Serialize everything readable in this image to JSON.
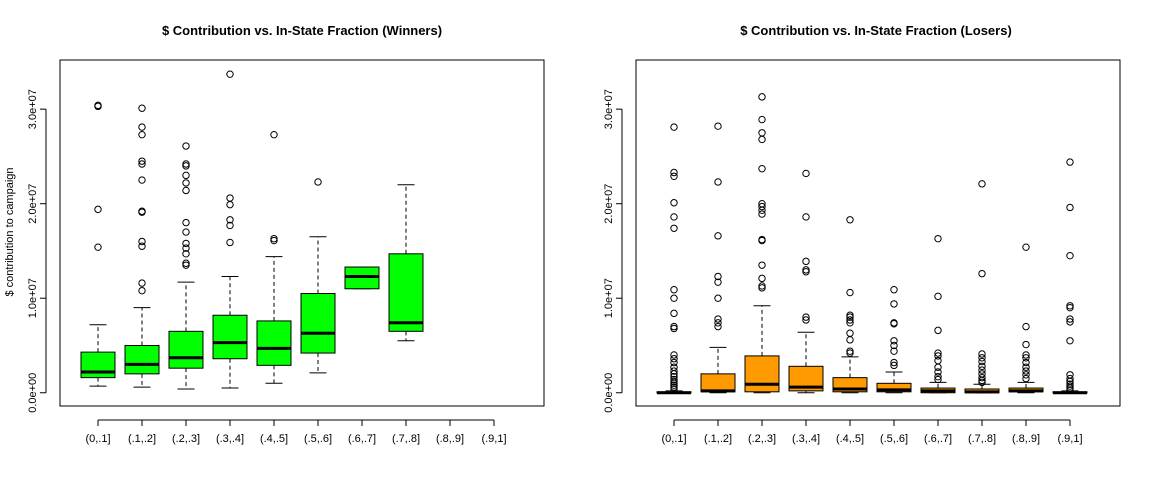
{
  "ylabel": "$ contribution to campaign",
  "colors": {
    "winners": "#00ff00",
    "losers": "#ff9a00",
    "stroke": "#000000"
  },
  "chart_data": [
    {
      "type": "box",
      "title": "$ Contribution vs. In-State Fraction (Winners)",
      "xlabel": "",
      "ylabel": "$ contribution to campaign",
      "ylim": [
        -1400000,
        35200000
      ],
      "yticks": [
        0,
        10000000,
        20000000,
        30000000
      ],
      "ytick_labels": [
        "0.0e+00",
        "1.0e+07",
        "2.0e+07",
        "3.0e+07"
      ],
      "categories": [
        "(0,.1]",
        "(.1,.2]",
        "(.2,.3]",
        "(.3,.4]",
        "(.4,.5]",
        "(.5,.6]",
        "(.6,.7]",
        "(.7,.8]",
        "(.8,.9]",
        "(.9,1]"
      ],
      "boxes": [
        {
          "whisker_low": 700000,
          "q1": 1600000,
          "median": 2200000,
          "q3": 4300000,
          "whisker_high": 7200000,
          "outliers": [
            15400000,
            19400000,
            30300000,
            30400000
          ]
        },
        {
          "whisker_low": 600000,
          "q1": 2000000,
          "median": 3000000,
          "q3": 5000000,
          "whisker_high": 9000000,
          "outliers": [
            10800000,
            11600000,
            15500000,
            16000000,
            19100000,
            19200000,
            22500000,
            24200000,
            24500000,
            27300000,
            28100000,
            30100000
          ]
        },
        {
          "whisker_low": 400000,
          "q1": 2600000,
          "median": 3700000,
          "q3": 6500000,
          "whisker_high": 11700000,
          "outliers": [
            13500000,
            13700000,
            14700000,
            15300000,
            15800000,
            17000000,
            18000000,
            21400000,
            22200000,
            23000000,
            24000000,
            24200000,
            26100000
          ]
        },
        {
          "whisker_low": 500000,
          "q1": 3600000,
          "median": 5300000,
          "q3": 8200000,
          "whisker_high": 12300000,
          "outliers": [
            15900000,
            17700000,
            18300000,
            19900000,
            20600000,
            33700000
          ]
        },
        {
          "whisker_low": 1000000,
          "q1": 2900000,
          "median": 4700000,
          "q3": 7600000,
          "whisker_high": 14400000,
          "outliers": [
            16100000,
            16300000,
            27300000
          ]
        },
        {
          "whisker_low": 2100000,
          "q1": 4200000,
          "median": 6300000,
          "q3": 10500000,
          "whisker_high": 16500000,
          "outliers": [
            22300000
          ]
        },
        {
          "whisker_low": 11000000,
          "q1": 11000000,
          "median": 12300000,
          "q3": 13300000,
          "whisker_high": 13300000,
          "outliers": []
        },
        {
          "whisker_low": 5500000,
          "q1": 6500000,
          "median": 7400000,
          "q3": 14700000,
          "whisker_high": 22000000,
          "outliers": []
        },
        null,
        null
      ]
    },
    {
      "type": "box",
      "title": "$ Contribution vs. In-State Fraction (Losers)",
      "xlabel": "",
      "ylabel": "",
      "ylim": [
        -1400000,
        35200000
      ],
      "yticks": [
        0,
        10000000,
        20000000,
        30000000
      ],
      "ytick_labels": [
        "0.0e+00",
        "1.0e+07",
        "2.0e+07",
        "3.0e+07"
      ],
      "categories": [
        "(0,.1]",
        "(.1,.2]",
        "(.2,.3]",
        "(.3,.4]",
        "(.4,.5]",
        "(.5,.6]",
        "(.6,.7]",
        "(.7,.8]",
        "(.8,.9]",
        "(.9,1]"
      ],
      "boxes": [
        {
          "whisker_low": 0,
          "q1": 0,
          "median": 0,
          "q3": 100000,
          "whisker_high": 200000,
          "outliers": [
            400000,
            600000,
            800000,
            1000000,
            1200000,
            1400000,
            1700000,
            2000000,
            2300000,
            2700000,
            3200000,
            3600000,
            4000000,
            6800000,
            7000000,
            8400000,
            10000000,
            10900000,
            17400000,
            18600000,
            20100000,
            22900000,
            23300000,
            28100000
          ]
        },
        {
          "whisker_low": 0,
          "q1": 100000,
          "median": 200000,
          "q3": 2000000,
          "whisker_high": 4800000,
          "outliers": [
            7000000,
            7400000,
            7800000,
            10000000,
            11700000,
            12300000,
            16600000,
            22300000,
            28200000
          ]
        },
        {
          "whisker_low": 0,
          "q1": 100000,
          "median": 900000,
          "q3": 3900000,
          "whisker_high": 9200000,
          "outliers": [
            11100000,
            11300000,
            12100000,
            13500000,
            16100000,
            16200000,
            18900000,
            19300000,
            19700000,
            20000000,
            23700000,
            26800000,
            27500000,
            28900000,
            31300000
          ]
        },
        {
          "whisker_low": 0,
          "q1": 200000,
          "median": 600000,
          "q3": 2800000,
          "whisker_high": 6400000,
          "outliers": [
            7700000,
            8000000,
            12800000,
            13000000,
            13900000,
            18600000,
            23200000
          ]
        },
        {
          "whisker_low": 0,
          "q1": 100000,
          "median": 400000,
          "q3": 1600000,
          "whisker_high": 3800000,
          "outliers": [
            4200000,
            4400000,
            5600000,
            6300000,
            7400000,
            7700000,
            8000000,
            8200000,
            10600000,
            18300000
          ]
        },
        {
          "whisker_low": 0,
          "q1": 100000,
          "median": 300000,
          "q3": 1000000,
          "whisker_high": 2200000,
          "outliers": [
            2900000,
            3200000,
            4400000,
            5000000,
            5500000,
            7300000,
            7400000,
            9400000,
            10900000
          ]
        },
        {
          "whisker_low": 0,
          "q1": 0,
          "median": 200000,
          "q3": 500000,
          "whisker_high": 1100000,
          "outliers": [
            1400000,
            1700000,
            2200000,
            2700000,
            3400000,
            3900000,
            4200000,
            6600000,
            10200000,
            16300000
          ]
        },
        {
          "whisker_low": 0,
          "q1": 0,
          "median": 100000,
          "q3": 400000,
          "whisker_high": 900000,
          "outliers": [
            1100000,
            1300000,
            1600000,
            2000000,
            2400000,
            2800000,
            3300000,
            3700000,
            4100000,
            12600000,
            22100000
          ]
        },
        {
          "whisker_low": 0,
          "q1": 100000,
          "median": 200000,
          "q3": 500000,
          "whisker_high": 1100000,
          "outliers": [
            1500000,
            1900000,
            2300000,
            2700000,
            3200000,
            3700000,
            4000000,
            5100000,
            7000000,
            15400000
          ]
        },
        {
          "whisker_low": 0,
          "q1": 0,
          "median": 0,
          "q3": 100000,
          "whisker_high": 200000,
          "outliers": [
            300000,
            500000,
            700000,
            900000,
            1200000,
            1500000,
            1900000,
            5500000,
            7500000,
            7800000,
            9000000,
            9200000,
            14500000,
            19600000,
            24400000
          ]
        }
      ]
    }
  ]
}
